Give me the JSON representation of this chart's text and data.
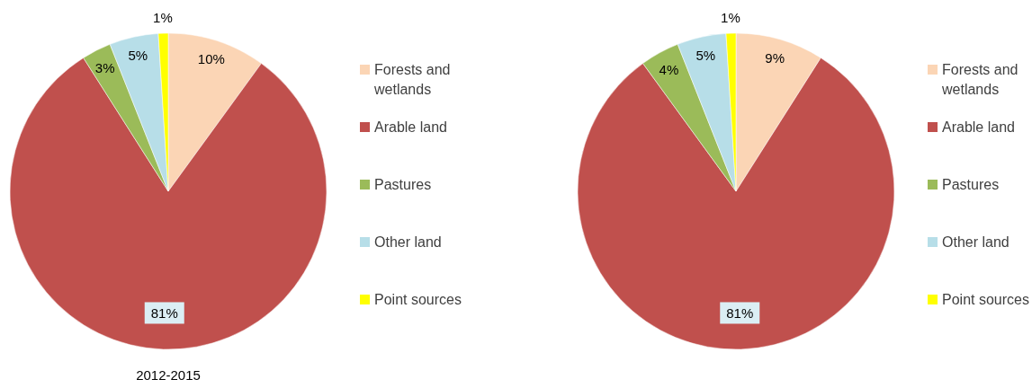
{
  "chart_data": [
    {
      "type": "pie",
      "xlabel": "2012-2015",
      "categories": [
        "Forests and wetlands",
        "Arable land",
        "Pastures",
        "Other land",
        "Point sources"
      ],
      "values": [
        10,
        81,
        3,
        5,
        1
      ],
      "value_labels": [
        "10%",
        "81%",
        "3%",
        "5%",
        "1%"
      ],
      "colors": [
        "#fbd5b5",
        "#c0504d",
        "#9bbb59",
        "#b7dee8",
        "#ffff00"
      ],
      "legend": "right"
    },
    {
      "type": "pie",
      "categories": [
        "Forests and wetlands",
        "Arable land",
        "Pastures",
        "Other land",
        "Point sources"
      ],
      "values": [
        9,
        81,
        4,
        5,
        1
      ],
      "value_labels": [
        "9%",
        "81%",
        "4%",
        "5%",
        "1%"
      ],
      "colors": [
        "#fbd5b5",
        "#c0504d",
        "#9bbb59",
        "#b7dee8",
        "#ffff00"
      ],
      "legend": "right"
    }
  ]
}
